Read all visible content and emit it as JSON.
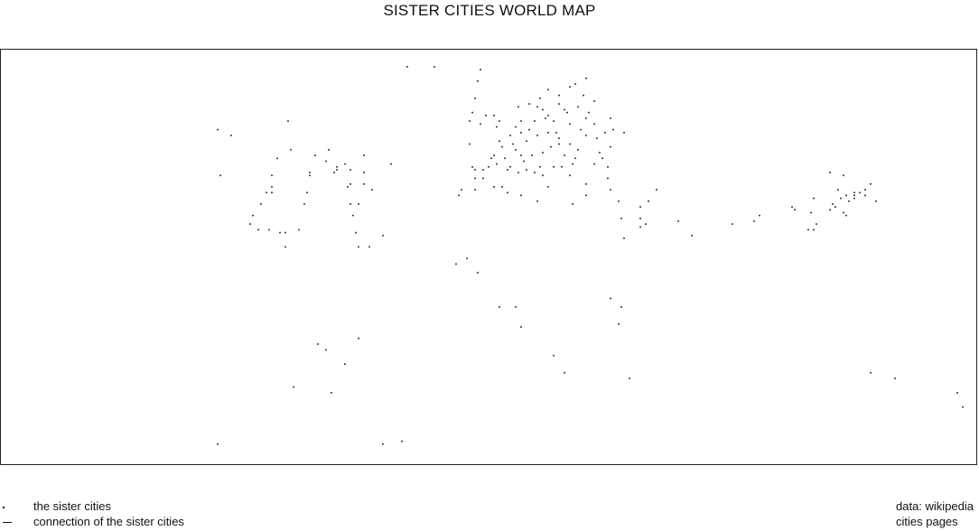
{
  "title": "SISTER CITIES WORLD MAP",
  "map": {
    "projection": "equirectangular",
    "border_color": "#222222",
    "point_color": "#111111",
    "cities": [
      [
        -100,
        57
      ],
      [
        -95,
        55
      ],
      [
        -99,
        41
      ],
      [
        -74,
        60
      ],
      [
        -78,
        47
      ],
      [
        -73,
        50
      ],
      [
        -66,
        42
      ],
      [
        -64,
        48
      ],
      [
        -60,
        46
      ],
      [
        -59,
        50
      ],
      [
        -80,
        41
      ],
      [
        -80,
        37
      ],
      [
        -80,
        35
      ],
      [
        -82,
        35
      ],
      [
        -84,
        31
      ],
      [
        -87,
        27
      ],
      [
        -88,
        24
      ],
      [
        -85,
        22
      ],
      [
        -81,
        22
      ],
      [
        -77,
        21
      ],
      [
        -75,
        21
      ],
      [
        -75,
        16
      ],
      [
        -70,
        22
      ],
      [
        -68,
        31
      ],
      [
        -67,
        35
      ],
      [
        -66,
        41
      ],
      [
        -56,
        43
      ],
      [
        -57,
        42
      ],
      [
        -56,
        44
      ],
      [
        -53,
        45
      ],
      [
        -51,
        31
      ],
      [
        -50,
        27
      ],
      [
        -52,
        37
      ],
      [
        -51,
        38
      ],
      [
        -51,
        43
      ],
      [
        -48,
        31
      ],
      [
        -49,
        21
      ],
      [
        -46,
        48
      ],
      [
        -48,
        16
      ],
      [
        -43,
        36
      ],
      [
        -46,
        38
      ],
      [
        -46,
        42
      ],
      [
        -44,
        16
      ],
      [
        -39,
        20
      ],
      [
        -36,
        45
      ],
      [
        -30,
        79
      ],
      [
        -20,
        79
      ],
      [
        -4,
        74
      ],
      [
        -3,
        78
      ],
      [
        -5,
        68
      ],
      [
        -6,
        63
      ],
      [
        -3,
        59
      ],
      [
        -7,
        60
      ],
      [
        -1,
        62
      ],
      [
        -7,
        52
      ],
      [
        -6,
        44
      ],
      [
        -5,
        43
      ],
      [
        -2,
        43
      ],
      [
        -5,
        40
      ],
      [
        -2,
        40
      ],
      [
        -10,
        36
      ],
      [
        -11,
        34
      ],
      [
        -5,
        36
      ],
      [
        5,
        51
      ],
      [
        6,
        47
      ],
      [
        8,
        44
      ],
      [
        10,
        50
      ],
      [
        12,
        48
      ],
      [
        2,
        48
      ],
      [
        3,
        58
      ],
      [
        8,
        55
      ],
      [
        10,
        58
      ],
      [
        12,
        60
      ],
      [
        14,
        53
      ],
      [
        15,
        57
      ],
      [
        17,
        60
      ],
      [
        18,
        65
      ],
      [
        19,
        68
      ],
      [
        20,
        64
      ],
      [
        22,
        56
      ],
      [
        24,
        60
      ],
      [
        25,
        56
      ],
      [
        28,
        48
      ],
      [
        30,
        59
      ],
      [
        28,
        64
      ],
      [
        26,
        66
      ],
      [
        30,
        52
      ],
      [
        32,
        47
      ],
      [
        34,
        57
      ],
      [
        36,
        61
      ],
      [
        35,
        69
      ],
      [
        30,
        72
      ],
      [
        32,
        73
      ],
      [
        36,
        75
      ],
      [
        39,
        67
      ],
      [
        37,
        63
      ],
      [
        39,
        59
      ],
      [
        40,
        54
      ],
      [
        42,
        47
      ],
      [
        44,
        44
      ],
      [
        45,
        51
      ],
      [
        46,
        57
      ],
      [
        39,
        45
      ],
      [
        33,
        50
      ],
      [
        26,
        52
      ],
      [
        19,
        44
      ],
      [
        13,
        46
      ],
      [
        4,
        53
      ],
      [
        9,
        52
      ],
      [
        16,
        48
      ],
      [
        20,
        49
      ],
      [
        23,
        51
      ],
      [
        31,
        45
      ],
      [
        27,
        44
      ],
      [
        24,
        44
      ],
      [
        20,
        41
      ],
      [
        17,
        42
      ],
      [
        14,
        43
      ],
      [
        11,
        42
      ],
      [
        7,
        43
      ],
      [
        30,
        41
      ],
      [
        4,
        60
      ],
      [
        2,
        62
      ],
      [
        11,
        65
      ],
      [
        15,
        66
      ],
      [
        22,
        71
      ],
      [
        26,
        69
      ],
      [
        33,
        65
      ],
      [
        29,
        63
      ],
      [
        22,
        62
      ],
      [
        36,
        55
      ],
      [
        41,
        49
      ],
      [
        3,
        45
      ],
      [
        1,
        47
      ],
      [
        0,
        44
      ],
      [
        21,
        61
      ],
      [
        18,
        55
      ],
      [
        12,
        56
      ],
      [
        26,
        54
      ],
      [
        2,
        37
      ],
      [
        5,
        37
      ],
      [
        7,
        35
      ],
      [
        12,
        34
      ],
      [
        18,
        32
      ],
      [
        22,
        37
      ],
      [
        31,
        31
      ],
      [
        36,
        34
      ],
      [
        36,
        38
      ],
      [
        44,
        40
      ],
      [
        45,
        36
      ],
      [
        48,
        32
      ],
      [
        49,
        26
      ],
      [
        58,
        24
      ],
      [
        56,
        26
      ],
      [
        56,
        23
      ],
      [
        50,
        19
      ],
      [
        70,
        25
      ],
      [
        75,
        20
      ],
      [
        56,
        30
      ],
      [
        59,
        32
      ],
      [
        62,
        36
      ],
      [
        43,
        56
      ],
      [
        45,
        61
      ],
      [
        50,
        56
      ],
      [
        -8,
        12
      ],
      [
        -12,
        10
      ],
      [
        -4,
        7
      ],
      [
        4,
        -5
      ],
      [
        10,
        -5
      ],
      [
        12,
        -12
      ],
      [
        24,
        -22
      ],
      [
        28,
        -28
      ],
      [
        45,
        -2
      ],
      [
        49,
        -5
      ],
      [
        48,
        -11
      ],
      [
        52,
        -30
      ],
      [
        90,
        24
      ],
      [
        98,
        25
      ],
      [
        100,
        27
      ],
      [
        120,
        22
      ],
      [
        119,
        28
      ],
      [
        113,
        29
      ],
      [
        112,
        30
      ],
      [
        121,
        24
      ],
      [
        118,
        22
      ],
      [
        126,
        29
      ],
      [
        128,
        30
      ],
      [
        127,
        31
      ],
      [
        131,
        28
      ],
      [
        132,
        27
      ],
      [
        129,
        36
      ],
      [
        131,
        41
      ],
      [
        126,
        42
      ],
      [
        120,
        33
      ],
      [
        130,
        33
      ],
      [
        132,
        34
      ],
      [
        135,
        34
      ],
      [
        137,
        35
      ],
      [
        139,
        36
      ],
      [
        141,
        38
      ],
      [
        143,
        32
      ],
      [
        139,
        34
      ],
      [
        135,
        33
      ],
      [
        133,
        32
      ],
      [
        135,
        35
      ],
      [
        141,
        -28
      ],
      [
        150,
        -30
      ],
      [
        173,
        -35
      ],
      [
        175,
        -40
      ],
      [
        -63,
        -18
      ],
      [
        -60,
        -20
      ],
      [
        -72,
        -33
      ],
      [
        -53,
        -25
      ],
      [
        -58,
        -35
      ],
      [
        -48,
        -16
      ],
      [
        -100,
        -53
      ],
      [
        -39,
        -53
      ],
      [
        -32,
        -52
      ]
    ]
  },
  "legend": {
    "items": [
      {
        "symbol": "dot",
        "label": "the sister cities"
      },
      {
        "symbol": "line",
        "label": "connection of the sister cities"
      }
    ]
  },
  "source": {
    "line1": "data: wikipedia",
    "line2": "cities pages"
  }
}
